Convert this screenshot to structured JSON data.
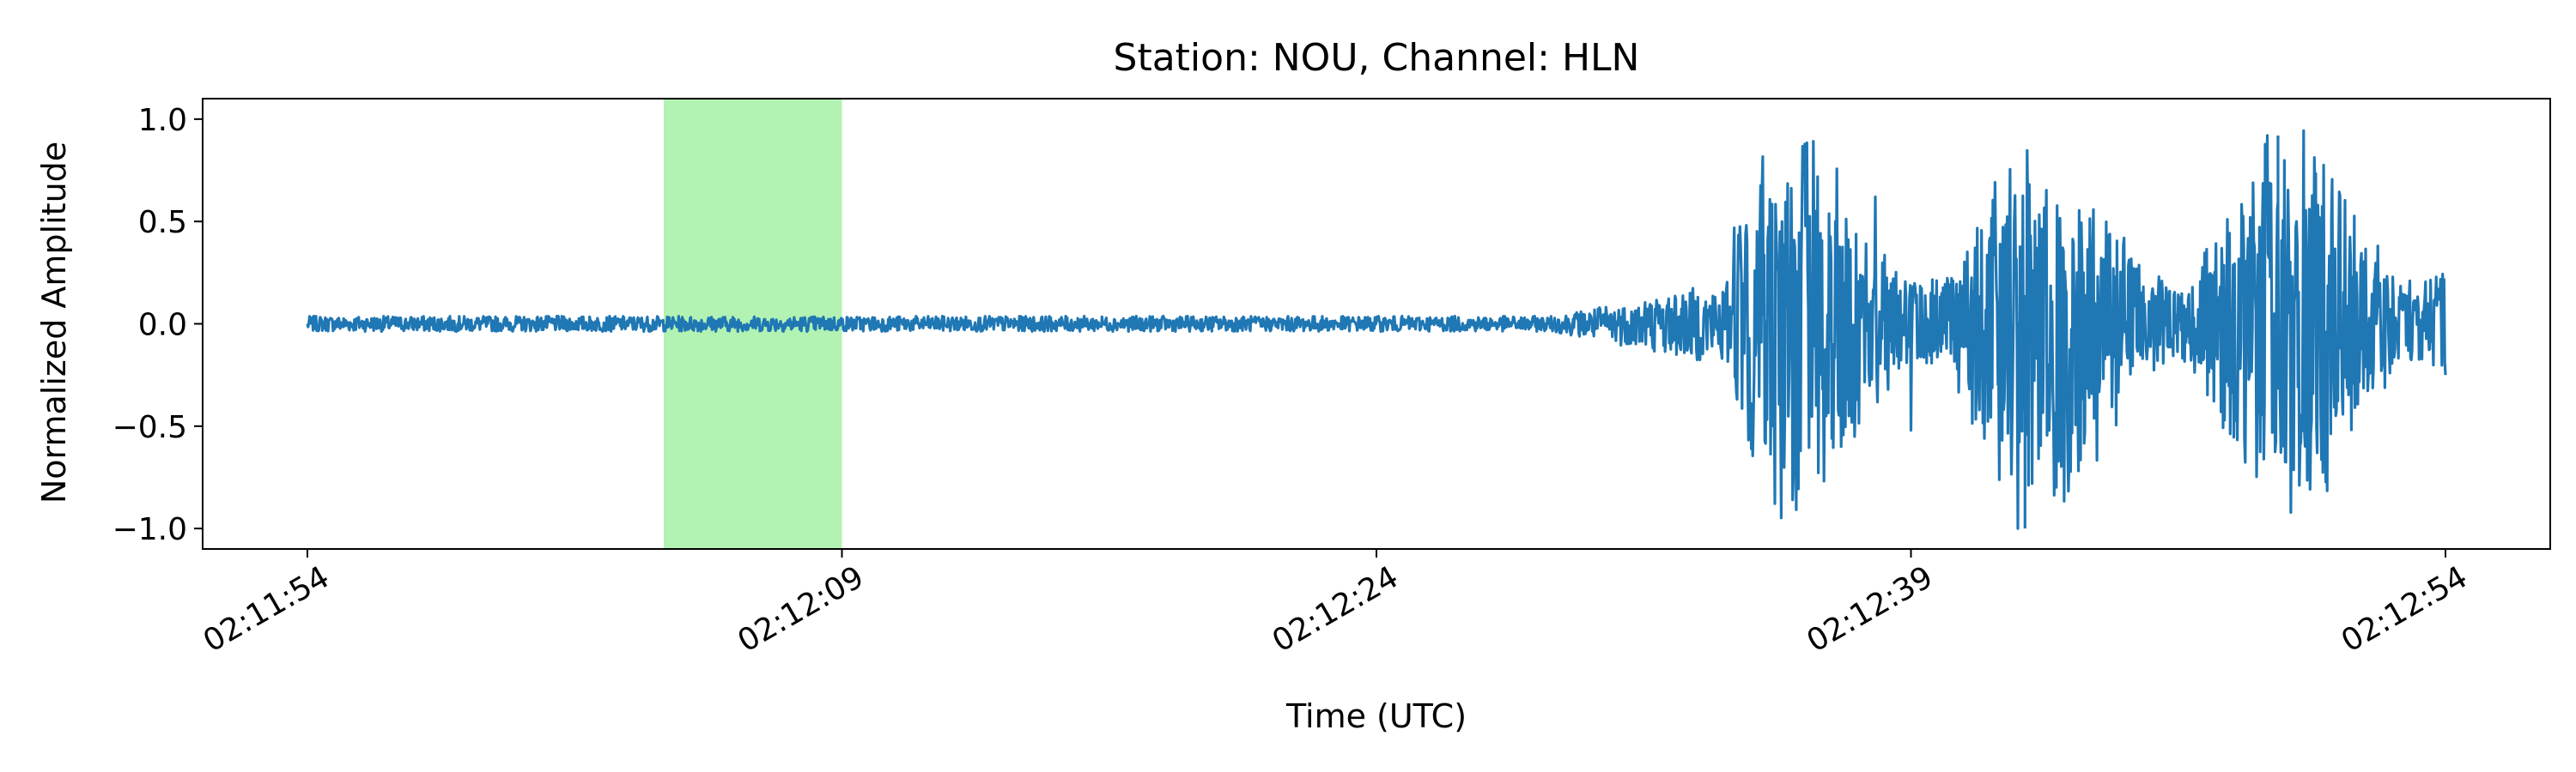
{
  "chart_data": {
    "type": "line",
    "title": "Station: NOU, Channel: HLN",
    "xlabel": "Time (UTC)",
    "ylabel": "Normalized Amplitude",
    "x_start": "02:11:54",
    "x_end": "02:12:54",
    "x_ticks": [
      "02:11:54",
      "02:12:09",
      "02:12:24",
      "02:12:39",
      "02:12:54"
    ],
    "x_tick_seconds_from_start": [
      0,
      15,
      30,
      45,
      60
    ],
    "ylim": [
      -1.1,
      1.1
    ],
    "y_ticks": [
      1.0,
      0.5,
      0.0,
      -0.5,
      -1.0
    ],
    "y_tick_labels": [
      "1.0",
      "0.5",
      "0.0",
      "−0.5",
      "−1.0"
    ],
    "grid": false,
    "highlight_window": {
      "start": "02:12:04",
      "end": "02:12:09",
      "color": "#b2f2b2"
    },
    "series": [
      {
        "color": "#1f77b4",
        "description_of_shape": "low-amplitude noise about 0.0 (±0.05) from 02:11:54 to about 02:12:34, then strong oscillation up to ±1.0 until 02:12:54",
        "key_points": [
          {
            "t": "02:11:54",
            "y": 0.0
          },
          {
            "t": "02:12:34",
            "y": 0.05
          },
          {
            "t": "02:12:38",
            "y": 0.62
          },
          {
            "t": "02:12:39",
            "y": -0.52
          },
          {
            "t": "02:12:42",
            "y": -1.0
          },
          {
            "t": "02:12:49",
            "y": 0.92
          },
          {
            "t": "02:12:54",
            "y": -0.25
          }
        ]
      }
    ]
  }
}
